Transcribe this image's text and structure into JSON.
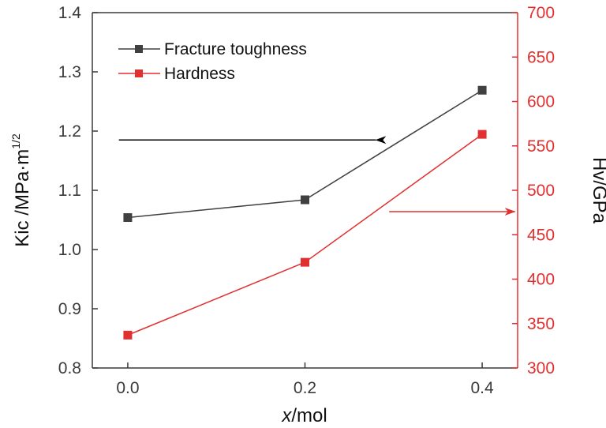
{
  "chart_data": {
    "type": "line",
    "x": [
      0.0,
      0.2,
      0.4
    ],
    "xticks": [
      "0.0",
      "0.2",
      "0.4"
    ],
    "xlim": [
      -0.04,
      0.44
    ],
    "xlabel": {
      "italic": "x",
      "rest": "/mol"
    },
    "y_left": {
      "label_main": "Kic /MPa·m",
      "label_sup": "1/2",
      "lim": [
        0.8,
        1.4
      ],
      "ticks": [
        "0.8",
        "0.9",
        "1.0",
        "1.1",
        "1.2",
        "1.3",
        "1.4"
      ],
      "tick_values": [
        0.8,
        0.9,
        1.0,
        1.1,
        1.2,
        1.3,
        1.4
      ],
      "color": "#3a3a3a"
    },
    "y_right": {
      "label": "Hv/GPa",
      "lim": [
        300,
        700
      ],
      "ticks": [
        "300",
        "350",
        "400",
        "450",
        "500",
        "550",
        "600",
        "650",
        "700"
      ],
      "tick_values": [
        300,
        350,
        400,
        450,
        500,
        550,
        600,
        650,
        700
      ],
      "color": "#e03030"
    },
    "series": [
      {
        "name": "Fracture toughness",
        "axis": "left",
        "values": [
          1.054,
          1.084,
          1.269
        ],
        "color": "#404040",
        "marker": "square"
      },
      {
        "name": "Hardness",
        "axis": "right",
        "values": [
          337,
          419,
          563
        ],
        "color": "#e03030",
        "marker": "square"
      }
    ],
    "annotations": [
      {
        "type": "arrow",
        "points_to": "left-axis",
        "color": "#000000",
        "y_axis": "left",
        "y": 1.185,
        "x_from": 0.28,
        "x_to": -0.01
      },
      {
        "type": "arrow",
        "points_to": "right-axis",
        "color": "#e03030",
        "y_axis": "right",
        "y": 476,
        "x_from": 0.295,
        "x_to": 0.437
      }
    ],
    "legend": {
      "position": "top-left"
    },
    "grid": false
  }
}
